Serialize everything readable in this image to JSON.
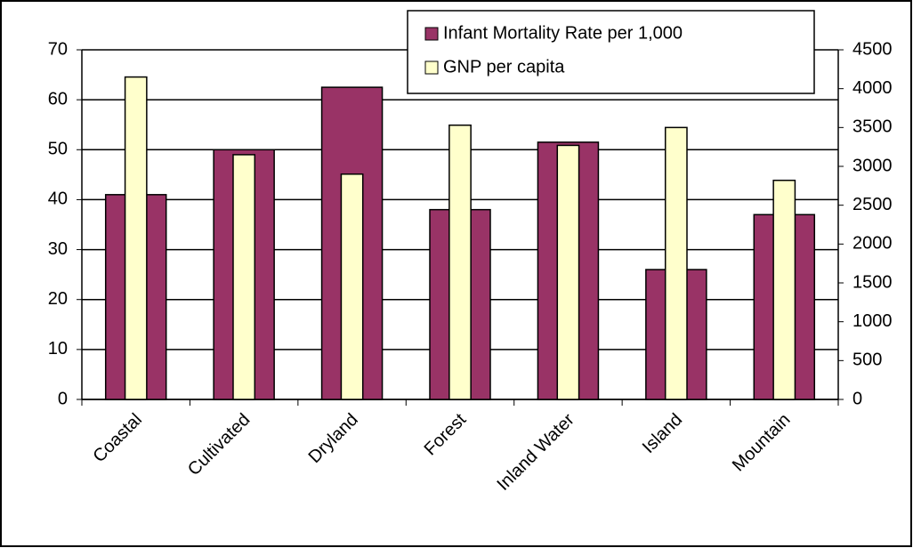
{
  "chart_data": {
    "type": "bar",
    "categories": [
      "Coastal",
      "Cultivated",
      "Dryland",
      "Forest",
      "Inland Water",
      "Island",
      "Mountain"
    ],
    "series": [
      {
        "name": "Infant Mortality Rate per 1,000",
        "color": "#993366",
        "values": [
          41,
          50,
          62.5,
          38,
          51.5,
          26,
          37
        ]
      },
      {
        "name": "GNP per capita",
        "color": "#ffffcc",
        "axis": "y2",
        "values": [
          4150,
          3150,
          2900,
          3530,
          3270,
          3500,
          2820
        ]
      }
    ],
    "ylim": [
      0,
      70
    ],
    "yticks": [
      0,
      10,
      20,
      30,
      40,
      50,
      60,
      70
    ],
    "y2lim": [
      0,
      4500
    ],
    "y2ticks": [
      0,
      500,
      1000,
      1500,
      2000,
      2500,
      3000,
      3500,
      4000,
      4500
    ],
    "grid": true,
    "legend": "top-right"
  }
}
